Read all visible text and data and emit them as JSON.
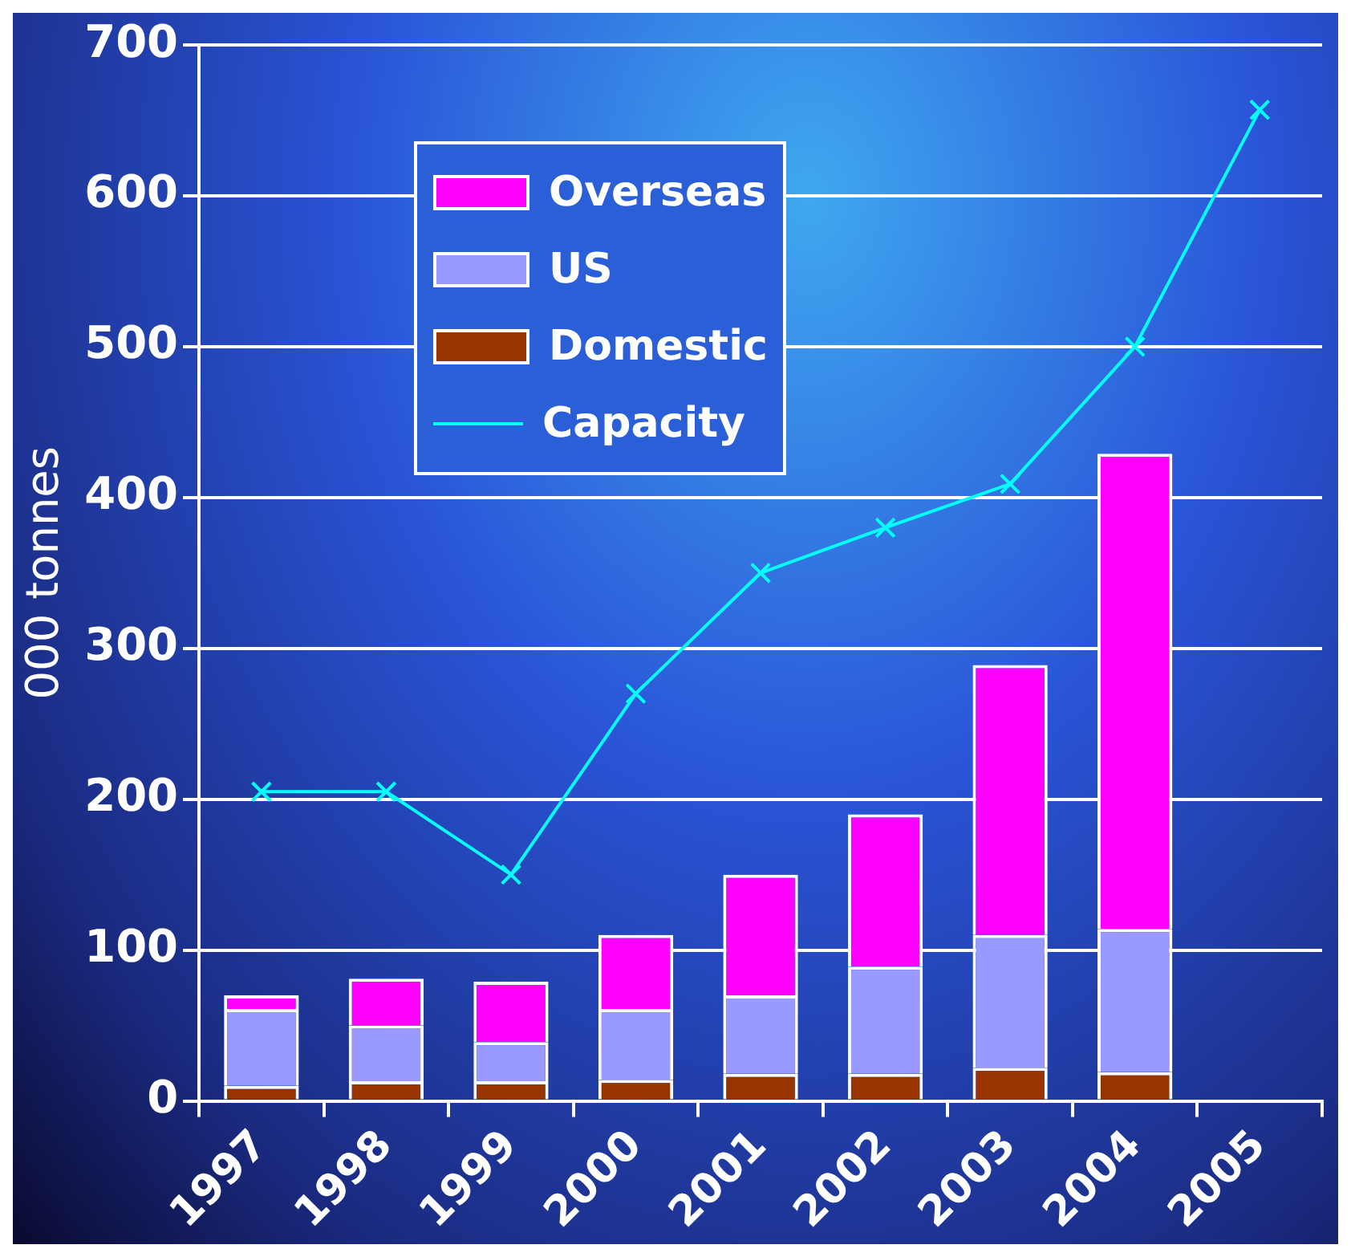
{
  "chart_data": {
    "type": "bar",
    "stacked": true,
    "ylabel": "000 tonnes",
    "categories": [
      "1997",
      "1998",
      "1999",
      "2000",
      "2001",
      "2002",
      "2003",
      "2004",
      "2005"
    ],
    "series": [
      {
        "name": "Domestic",
        "color": "#993300",
        "values": [
          10,
          13,
          13,
          14,
          18,
          18,
          22,
          19,
          null
        ]
      },
      {
        "name": "US",
        "color": "#9999ff",
        "values": [
          51,
          37,
          26,
          47,
          52,
          71,
          88,
          95,
          null
        ]
      },
      {
        "name": "Overseas",
        "color": "#ff00ff",
        "values": [
          9,
          31,
          40,
          49,
          80,
          101,
          179,
          315,
          null
        ]
      },
      {
        "name": "Capacity",
        "type": "line",
        "color": "#00ffff",
        "marker": "cross",
        "values": [
          205,
          205,
          150,
          270,
          350,
          380,
          409,
          500,
          657
        ]
      }
    ],
    "ylim": [
      0,
      700
    ],
    "yticks": [
      0,
      100,
      200,
      300,
      400,
      500,
      600,
      700
    ],
    "grid": "y",
    "legend": "top left"
  }
}
